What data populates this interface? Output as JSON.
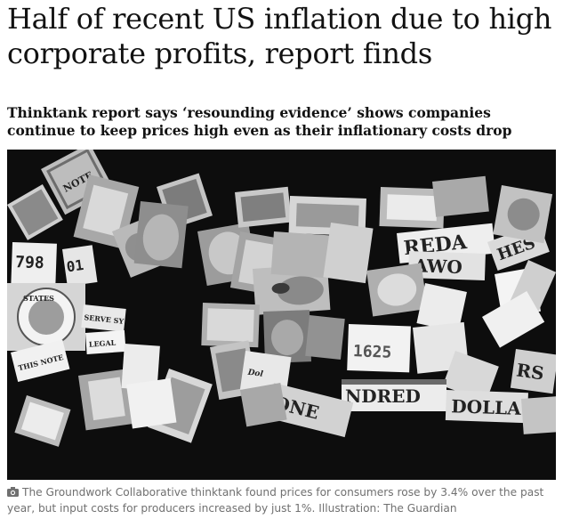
{
  "article": {
    "headline": "Half of recent US inflation due to high corporate profits, report finds",
    "standfirst": "Thinktank report says ‘resounding evidence’ shows companies continue to keep prices high even as their inflationary costs drop",
    "caption": "The Groundwork Collaborative thinktank found prices for consumers rose by 3.4% over the past year, but input costs for producers increased by just 1%. Illustration: The Guardian"
  },
  "illustration": {
    "fragment_texts": [
      "NOTE",
      "798",
      "01",
      "STATES",
      "SERVE SY",
      "LEGAL",
      "THIS NOTE",
      "ONE",
      "NDRED",
      "DOLLA",
      "RS",
      "1625",
      "REDA",
      "AWO",
      "HES"
    ],
    "background_color": "#0d0d0d"
  },
  "icons": {
    "caption_icon": "camera-icon"
  }
}
